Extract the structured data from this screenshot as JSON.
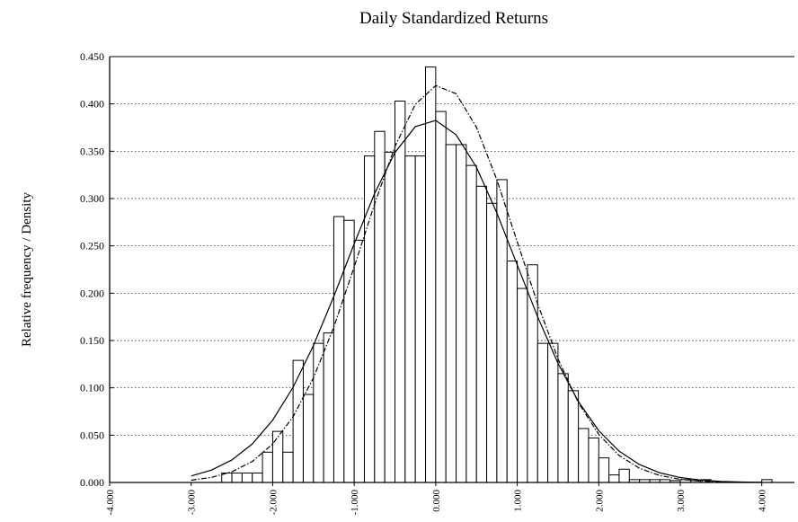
{
  "chart_data": {
    "type": "histogram",
    "title": "Daily Standardized Returns",
    "ylabel": "Relative frequency / Density",
    "bins": [
      -2.625,
      -2.5,
      -2.375,
      -2.25,
      -2.125,
      -2.0,
      -1.875,
      -1.75,
      -1.625,
      -1.5,
      -1.375,
      -1.25,
      -1.125,
      -1.0,
      -0.875,
      -0.75,
      -0.625,
      -0.5,
      -0.375,
      -0.25,
      -0.125,
      0.0,
      0.125,
      0.25,
      0.375,
      0.5,
      0.625,
      0.75,
      0.875,
      1.0,
      1.125,
      1.25,
      1.375,
      1.5,
      1.625,
      1.75,
      1.875,
      2.0,
      2.125,
      2.25,
      2.375,
      2.5,
      2.625,
      2.75,
      2.875,
      3.0,
      3.125,
      3.25,
      3.375,
      3.5,
      3.625,
      3.75,
      3.875,
      4.0,
      4.125
    ],
    "values": [
      0.01,
      0.01,
      0.01,
      0.01,
      0.032,
      0.054,
      0.032,
      0.129,
      0.093,
      0.147,
      0.158,
      0.281,
      0.277,
      0.256,
      0.345,
      0.371,
      0.349,
      0.403,
      0.345,
      0.345,
      0.439,
      0.392,
      0.357,
      0.357,
      0.335,
      0.313,
      0.295,
      0.32,
      0.234,
      0.205,
      0.23,
      0.147,
      0.147,
      0.115,
      0.097,
      0.057,
      0.047,
      0.026,
      0.008,
      0.014,
      0.003,
      0.003,
      0.003,
      0.003,
      0.002,
      0.003,
      0.002,
      0.003,
      0.0,
      0.0,
      0.0,
      0.0,
      0.0,
      0.003
    ],
    "color": "#ffffff",
    "edge_color": "#000000",
    "line_x": [
      -3.0,
      -2.75,
      -2.5,
      -2.25,
      -2.0,
      -1.75,
      -1.5,
      -1.25,
      -1.0,
      -0.75,
      -0.5,
      -0.25,
      0.0,
      0.25,
      0.5,
      0.75,
      1.0,
      1.25,
      1.5,
      1.75,
      2.0,
      2.25,
      2.5,
      2.75,
      3.0,
      3.25,
      3.5,
      3.75,
      4.0
    ],
    "lines": [
      {
        "style": "solid",
        "color": "#000000",
        "values": [
          0.0068,
          0.0131,
          0.0238,
          0.0407,
          0.0659,
          0.1005,
          0.1447,
          0.1966,
          0.2522,
          0.3053,
          0.3487,
          0.376,
          0.3826,
          0.3674,
          0.333,
          0.2848,
          0.2299,
          0.1751,
          0.1259,
          0.0855,
          0.0547,
          0.0331,
          0.0189,
          0.0102,
          0.0052,
          0.0025,
          0.0011,
          0.0005,
          0.0002
        ]
      },
      {
        "style": "dashdot",
        "color": "#000000",
        "values": [
          0.0024,
          0.0054,
          0.0113,
          0.0222,
          0.0407,
          0.0694,
          0.1105,
          0.1642,
          0.2277,
          0.2943,
          0.355,
          0.3995,
          0.4194,
          0.4108,
          0.3753,
          0.3199,
          0.2544,
          0.1887,
          0.1306,
          0.0843,
          0.0508,
          0.0285,
          0.015,
          0.0073,
          0.0033,
          0.0014,
          0.0006,
          0.0002,
          0.0001
        ]
      }
    ],
    "xlim": [
      -4.0,
      4.4
    ],
    "ylim": [
      0.0,
      0.45
    ],
    "xticks": [
      {
        "value": -4,
        "label": "-4.000"
      },
      {
        "value": -3,
        "label": "-3.000"
      },
      {
        "value": -2,
        "label": "-2.000"
      },
      {
        "value": -1,
        "label": "-1.000"
      },
      {
        "value": 0,
        "label": "0.000"
      },
      {
        "value": 1,
        "label": "1.000"
      },
      {
        "value": 2,
        "label": "2.000"
      },
      {
        "value": 3,
        "label": "3.000"
      },
      {
        "value": 4,
        "label": "4.000"
      }
    ],
    "yticks": [
      {
        "value": 0,
        "label": "0.000"
      },
      {
        "value": 0.05,
        "label": "0.050"
      },
      {
        "value": 0.1,
        "label": "0.100"
      },
      {
        "value": 0.15,
        "label": "0.150"
      },
      {
        "value": 0.2,
        "label": "0.200"
      },
      {
        "value": 0.25,
        "label": "0.250"
      },
      {
        "value": 0.3,
        "label": "0.300"
      },
      {
        "value": 0.35,
        "label": "0.350"
      },
      {
        "value": 0.4,
        "label": "0.400"
      },
      {
        "value": 0.45,
        "label": "0.450"
      }
    ],
    "grid": true
  }
}
